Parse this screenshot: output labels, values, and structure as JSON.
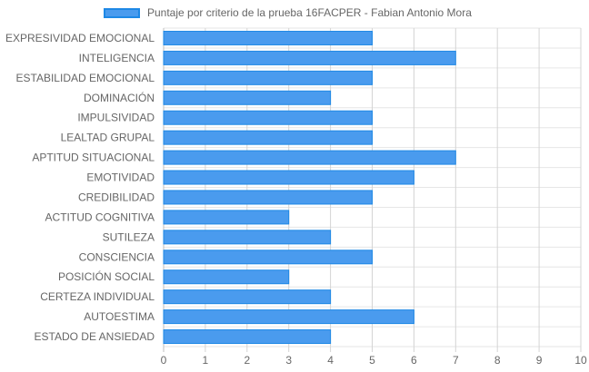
{
  "chart_data": {
    "type": "bar",
    "orientation": "horizontal",
    "categories": [
      "EXPRESIVIDAD EMOCIONAL",
      "INTELIGENCIA",
      "ESTABILIDAD EMOCIONAL",
      "DOMINACIÓN",
      "IMPULSIVIDAD",
      "LEALTAD GRUPAL",
      "APTITUD SITUACIONAL",
      "EMOTIVIDAD",
      "CREDIBILIDAD",
      "ACTITUD COGNITIVA",
      "SUTILEZA",
      "CONSCIENCIA",
      "POSICIÓN SOCIAL",
      "CERTEZA INDIVIDUAL",
      "AUTOESTIMA",
      "ESTADO DE ANSIEDAD"
    ],
    "series": [
      {
        "name": "Puntaje por criterio de la prueba 16FACPER - Fabian Antonio Mora",
        "values": [
          5,
          7,
          5,
          4,
          5,
          5,
          7,
          6,
          5,
          3,
          4,
          5,
          3,
          4,
          6,
          4
        ],
        "color": "#4a9bee",
        "border_color": "#1e88e5"
      }
    ],
    "xlim": [
      0,
      10
    ],
    "xticks": [
      "0",
      "1",
      "2",
      "3",
      "4",
      "5",
      "6",
      "7",
      "8",
      "9",
      "10"
    ],
    "grid": true,
    "legend_position": "top"
  }
}
